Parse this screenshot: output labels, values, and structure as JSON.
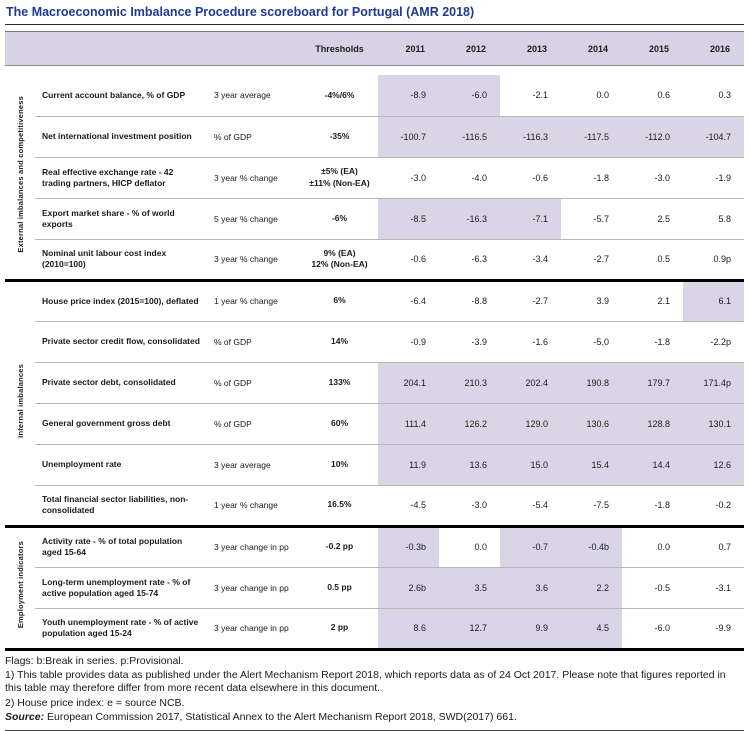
{
  "title": "The Macroeconomic Imbalance Procedure scoreboard for Portugal (AMR 2018)",
  "colors": {
    "title_blue": "#1f3a93",
    "header_lavender": "#d8d3e4",
    "highlight_lavender": "#dad5e6"
  },
  "table": {
    "header": {
      "thresholds_label": "Thresholds",
      "years": [
        "2011",
        "2012",
        "2013",
        "2014",
        "2015",
        "2016"
      ]
    },
    "groups": [
      {
        "label": "External imbalances and competitiveness",
        "rows": [
          {
            "name": "Current account balance, % of GDP",
            "unit": "3 year average",
            "threshold": "-4%/6%",
            "values": [
              "-8.9",
              "-6.0",
              "-2.1",
              "0.0",
              "0.6",
              "0.3"
            ],
            "highlighted": [
              1,
              1,
              0,
              0,
              0,
              0
            ]
          },
          {
            "name": "Net international investment position",
            "unit": "% of GDP",
            "threshold": "-35%",
            "values": [
              "-100.7",
              "-116.5",
              "-116.3",
              "-117.5",
              "-112.0",
              "-104.7"
            ],
            "highlighted": [
              1,
              1,
              1,
              1,
              1,
              1
            ]
          },
          {
            "name": "Real effective exchange rate - 42 trading partners, HICP deflator",
            "unit": "3 year % change",
            "threshold": "±5% (EA)\n±11% (Non-EA)",
            "values": [
              "-3.0",
              "-4.0",
              "-0.6",
              "-1.8",
              "-3.0",
              "-1.9"
            ],
            "highlighted": [
              0,
              0,
              0,
              0,
              0,
              0
            ]
          },
          {
            "name": "Export market share - % of world exports",
            "unit": "5 year % change",
            "threshold": "-6%",
            "values": [
              "-8.5",
              "-16.3",
              "-7.1",
              "-5.7",
              "2.5",
              "5.8"
            ],
            "highlighted": [
              1,
              1,
              1,
              0,
              0,
              0
            ]
          },
          {
            "name": "Nominal unit labour cost index (2010=100)",
            "unit": "3 year % change",
            "threshold": "9% (EA)\n12% (Non-EA)",
            "values": [
              "-0.6",
              "-6.3",
              "-3.4",
              "-2.7",
              "0.5",
              "0.9p"
            ],
            "highlighted": [
              0,
              0,
              0,
              0,
              0,
              0
            ]
          }
        ]
      },
      {
        "label": "Internal imbalances",
        "rows": [
          {
            "name": "House price index (2015=100), deflated",
            "unit": "1 year % change",
            "threshold": "6%",
            "values": [
              "-6.4",
              "-8.8",
              "-2.7",
              "3.9",
              "2.1",
              "6.1"
            ],
            "highlighted": [
              0,
              0,
              0,
              0,
              0,
              1
            ]
          },
          {
            "name": "Private sector credit flow, consolidated",
            "unit": "% of GDP",
            "threshold": "14%",
            "values": [
              "-0.9",
              "-3.9",
              "-1.6",
              "-5.0",
              "-1.8",
              "-2.2p"
            ],
            "highlighted": [
              0,
              0,
              0,
              0,
              0,
              0
            ]
          },
          {
            "name": "Private sector debt, consolidated",
            "unit": "% of GDP",
            "threshold": "133%",
            "values": [
              "204.1",
              "210.3",
              "202.4",
              "190.8",
              "179.7",
              "171.4p"
            ],
            "highlighted": [
              1,
              1,
              1,
              1,
              1,
              1
            ]
          },
          {
            "name": "General government gross debt",
            "unit": "% of GDP",
            "threshold": "60%",
            "values": [
              "111.4",
              "126.2",
              "129.0",
              "130.6",
              "128.8",
              "130.1"
            ],
            "highlighted": [
              1,
              1,
              1,
              1,
              1,
              1
            ]
          },
          {
            "name": "Unemployment rate",
            "unit": "3 year average",
            "threshold": "10%",
            "values": [
              "11.9",
              "13.6",
              "15.0",
              "15.4",
              "14.4",
              "12.6"
            ],
            "highlighted": [
              1,
              1,
              1,
              1,
              1,
              1
            ]
          },
          {
            "name": "Total financial sector liabilities, non-consolidated",
            "unit": "1 year % change",
            "threshold": "16.5%",
            "values": [
              "-4.5",
              "-3.0",
              "-5.4",
              "-7.5",
              "-1.8",
              "-0.2"
            ],
            "highlighted": [
              0,
              0,
              0,
              0,
              0,
              0
            ]
          }
        ]
      },
      {
        "label": "Employment indicators",
        "rows": [
          {
            "name": "Activity rate - % of total population aged 15-64",
            "unit": "3 year change in pp",
            "threshold": "-0.2 pp",
            "values": [
              "-0.3b",
              "0.0",
              "-0.7",
              "-0.4b",
              "0.0",
              "0.7"
            ],
            "highlighted": [
              1,
              0,
              1,
              1,
              0,
              0
            ]
          },
          {
            "name": "Long-term unemployment rate - % of active population aged 15-74",
            "unit": "3 year change in pp",
            "threshold": "0.5 pp",
            "values": [
              "2.6b",
              "3.5",
              "3.6",
              "2.2",
              "-0.5",
              "-3.1"
            ],
            "highlighted": [
              1,
              1,
              1,
              1,
              0,
              0
            ]
          },
          {
            "name": "Youth unemployment rate - % of active population aged 15-24",
            "unit": "3 year change in pp",
            "threshold": "2 pp",
            "values": [
              "8.6",
              "12.7",
              "9.9",
              "4.5",
              "-6.0",
              "-9.9"
            ],
            "highlighted": [
              1,
              1,
              1,
              1,
              0,
              0
            ]
          }
        ]
      }
    ]
  },
  "footnotes": {
    "flags": "Flags: b:Break in series. p:Provisional.",
    "note1": "1) This table provides data as published under the Alert Mechanism Report 2018, which reports data as of 24 Oct 2017. Please note that figures reported in this table may therefore differ from more recent data elsewhere in this document.",
    "note2": "2) House price index: e = source NCB.",
    "source_label": "Source:",
    "source_text": " European Commission 2017, Statistical Annex to the Alert Mechanism Report 2018, SWD(2017) 661."
  }
}
